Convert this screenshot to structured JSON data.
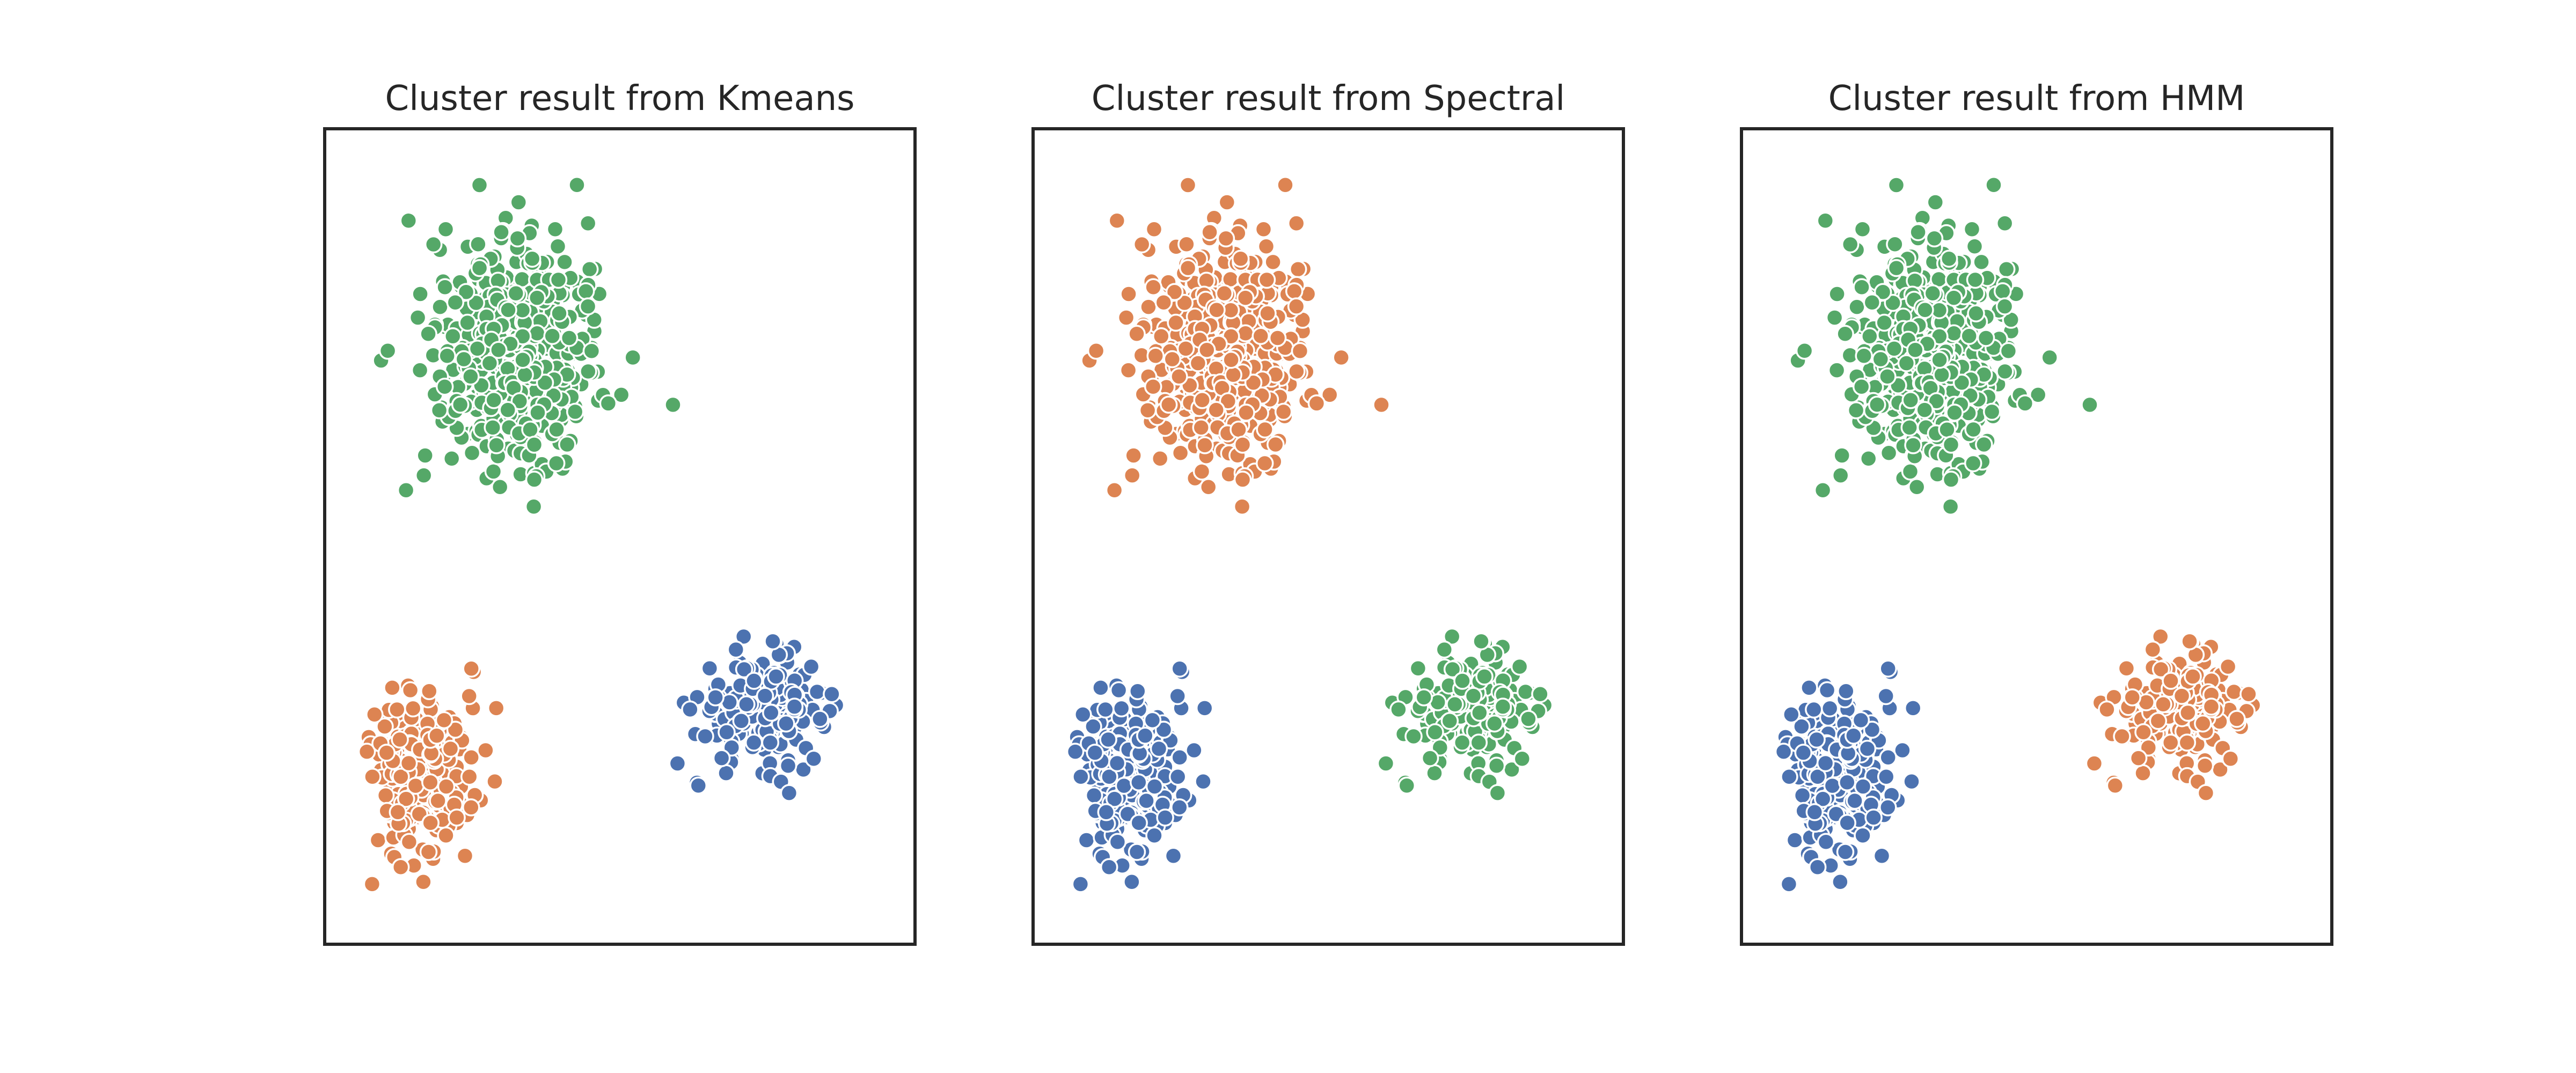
{
  "colors": {
    "blue": "#4c72b0",
    "orange": "#dd8452",
    "green": "#55a868"
  },
  "chart_data": [
    {
      "type": "scatter",
      "title": "Cluster result from Kmeans",
      "xlabel": "",
      "ylabel": "",
      "xlim": [
        -6.2,
        7.6
      ],
      "ylim": [
        -6.8,
        11.6
      ],
      "grid": false,
      "axes_ticks": false,
      "legend": "none",
      "clusters": [
        {
          "color": "blue",
          "center": [
            4.0,
            -1.5
          ],
          "spread": [
            0.75,
            0.6
          ],
          "n": 220
        },
        {
          "color": "orange",
          "center": [
            -3.9,
            -3.0
          ],
          "spread": [
            0.55,
            0.95
          ],
          "n": 240
        },
        {
          "color": "green",
          "center": [
            -1.8,
            6.5
          ],
          "spread": [
            0.95,
            1.25
          ],
          "n": 520
        }
      ]
    },
    {
      "type": "scatter",
      "title": "Cluster result from Spectral",
      "xlabel": "",
      "ylabel": "",
      "xlim": [
        -6.2,
        7.6
      ],
      "ylim": [
        -6.8,
        11.6
      ],
      "grid": false,
      "axes_ticks": false,
      "legend": "none",
      "clusters": [
        {
          "color": "green",
          "center": [
            4.0,
            -1.5
          ],
          "spread": [
            0.75,
            0.6
          ],
          "n": 220
        },
        {
          "color": "blue",
          "center": [
            -3.9,
            -3.0
          ],
          "spread": [
            0.55,
            0.95
          ],
          "n": 240
        },
        {
          "color": "orange",
          "center": [
            -1.8,
            6.5
          ],
          "spread": [
            0.95,
            1.25
          ],
          "n": 520
        }
      ]
    },
    {
      "type": "scatter",
      "title": "Cluster result from HMM",
      "xlabel": "",
      "ylabel": "",
      "xlim": [
        -6.2,
        7.6
      ],
      "ylim": [
        -6.8,
        11.6
      ],
      "grid": false,
      "axes_ticks": false,
      "legend": "none",
      "clusters": [
        {
          "color": "orange",
          "center": [
            4.0,
            -1.5
          ],
          "spread": [
            0.75,
            0.6
          ],
          "n": 220
        },
        {
          "color": "blue",
          "center": [
            -3.9,
            -3.0
          ],
          "spread": [
            0.55,
            0.95
          ],
          "n": 240
        },
        {
          "color": "green",
          "center": [
            -1.8,
            6.5
          ],
          "spread": [
            0.95,
            1.25
          ],
          "n": 520
        }
      ]
    }
  ]
}
